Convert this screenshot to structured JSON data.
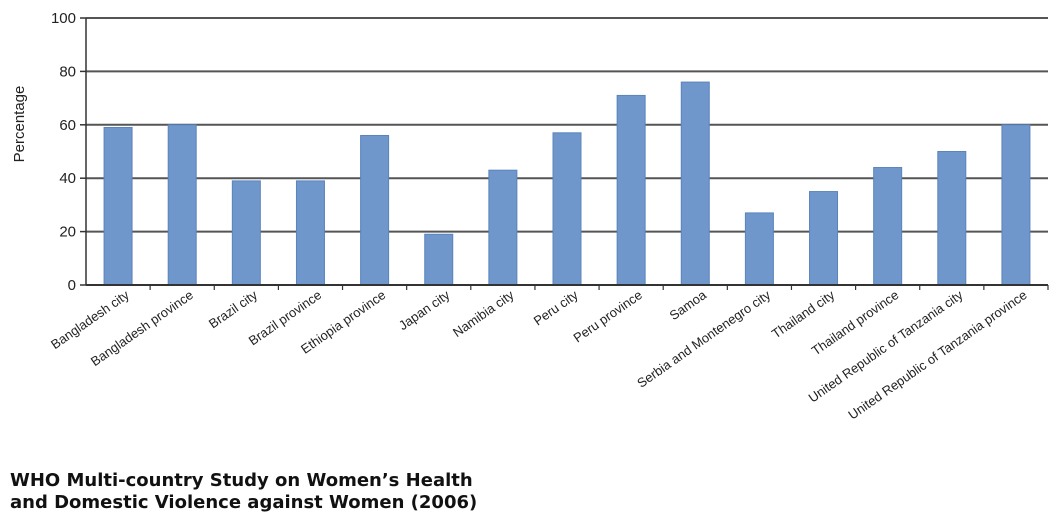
{
  "chart_data": {
    "type": "bar",
    "ylabel": "Percentage",
    "xlabel": "",
    "ylim": [
      0,
      100
    ],
    "yticks": [
      0,
      20,
      40,
      60,
      80,
      100
    ],
    "grid": true,
    "categories": [
      "Bangladesh city",
      "Bangladesh province",
      "Brazil city",
      "Brazil province",
      "Ethiopia province",
      "Japan city",
      "Namibia city",
      "Peru city",
      "Peru province",
      "Samoa",
      "Serbia and Montenegro city",
      "Thailand city",
      "Thailand province",
      "United Republic of Tanzania city",
      "United Republic of Tanzania province"
    ],
    "values": [
      59,
      60,
      39,
      39,
      56,
      19,
      43,
      57,
      71,
      76,
      27,
      35,
      44,
      50,
      60
    ],
    "bar_color": "#6f97cc",
    "bar_edge_color": "#5b84bb"
  },
  "footer": {
    "title_line1": "WHO Multi-country Study on Women’s Health",
    "title_line2": "and Domestic Violence against Women (2006)"
  }
}
